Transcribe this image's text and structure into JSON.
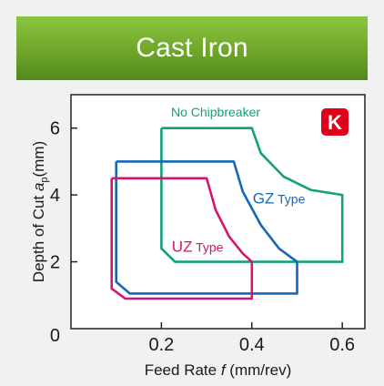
{
  "banner": {
    "title": "Cast Iron"
  },
  "badge": {
    "text": "K",
    "color": "#e0001b"
  },
  "chart_data": {
    "type": "area",
    "title": "Cast Iron",
    "xlabel": "Feed Rate f (mm/rev)",
    "ylabel": "Depth of Cut ap (mm)",
    "xlabel_parts": {
      "prefix": "Feed Rate ",
      "symbol": "f",
      "suffix": " (mm/rev)"
    },
    "ylabel_parts": {
      "prefix": "Depth of Cut ",
      "symbol": "a",
      "subscript": "p",
      "suffix": "(mm)"
    },
    "xlim": [
      0,
      0.65
    ],
    "ylim": [
      0,
      7
    ],
    "xticks": [
      "0.2",
      "0.4",
      "0.6"
    ],
    "xtick_values": [
      0.2,
      0.4,
      0.6
    ],
    "yticks": [
      "0",
      "2",
      "4",
      "6"
    ],
    "ytick_values": [
      0,
      2,
      4,
      6
    ],
    "grid": false,
    "legend": "none",
    "series": [
      {
        "name": "No Chipbreaker",
        "label_main": "No Chipbreaker",
        "label_sub": "",
        "color": "#12a07c",
        "label_at": [
          0.32,
          6.35
        ],
        "label_size": "small",
        "outline": [
          [
            0.2,
            6.0
          ],
          [
            0.4,
            6.0
          ],
          [
            0.42,
            5.25
          ],
          [
            0.47,
            4.55
          ],
          [
            0.53,
            4.15
          ],
          [
            0.6,
            4.0
          ],
          [
            0.6,
            2.0
          ],
          [
            0.23,
            2.0
          ],
          [
            0.2,
            2.4
          ],
          [
            0.2,
            6.0
          ]
        ]
      },
      {
        "name": "GZ Type",
        "label_main": "GZ",
        "label_sub": " Type",
        "color": "#1668b4",
        "label_at": [
          0.46,
          3.75
        ],
        "label_size": "medium",
        "outline": [
          [
            0.1,
            5.0
          ],
          [
            0.36,
            5.0
          ],
          [
            0.38,
            4.1
          ],
          [
            0.42,
            3.1
          ],
          [
            0.46,
            2.4
          ],
          [
            0.5,
            2.0
          ],
          [
            0.5,
            1.05
          ],
          [
            0.13,
            1.05
          ],
          [
            0.1,
            1.4
          ],
          [
            0.1,
            5.0
          ]
        ]
      },
      {
        "name": "UZ Type",
        "label_main": "UZ",
        "label_sub": " Type",
        "color": "#d4146e",
        "label_at": [
          0.28,
          2.3
        ],
        "label_size": "medium",
        "outline": [
          [
            0.09,
            4.5
          ],
          [
            0.3,
            4.5
          ],
          [
            0.32,
            3.55
          ],
          [
            0.35,
            2.75
          ],
          [
            0.38,
            2.25
          ],
          [
            0.4,
            2.0
          ],
          [
            0.4,
            0.9
          ],
          [
            0.12,
            0.9
          ],
          [
            0.09,
            1.2
          ],
          [
            0.09,
            4.5
          ]
        ]
      }
    ]
  }
}
